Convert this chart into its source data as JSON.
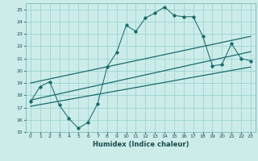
{
  "xlabel": "Humidex (Indice chaleur)",
  "bg_color": "#ccecea",
  "grid_color": "#9dd4d0",
  "line_color": "#1a6b6b",
  "xlim": [
    -0.5,
    23.5
  ],
  "ylim": [
    15,
    25.5
  ],
  "yticks": [
    15,
    16,
    17,
    18,
    19,
    20,
    21,
    22,
    23,
    24,
    25
  ],
  "xticks": [
    0,
    1,
    2,
    3,
    4,
    5,
    6,
    7,
    8,
    9,
    10,
    11,
    12,
    13,
    14,
    15,
    16,
    17,
    18,
    19,
    20,
    21,
    22,
    23
  ],
  "main_line_x": [
    0,
    1,
    2,
    3,
    4,
    5,
    6,
    7,
    8,
    9,
    10,
    11,
    12,
    13,
    14,
    15,
    16,
    17,
    18,
    19,
    20,
    21,
    22,
    23
  ],
  "main_line_y": [
    17.5,
    18.7,
    19.1,
    17.2,
    16.1,
    15.3,
    15.8,
    17.3,
    20.3,
    21.5,
    23.7,
    23.2,
    24.3,
    24.7,
    25.2,
    24.5,
    24.4,
    24.4,
    22.8,
    20.4,
    20.5,
    22.2,
    21.0,
    20.8
  ],
  "upper_line": [
    [
      0,
      19.0
    ],
    [
      23,
      22.8
    ]
  ],
  "lower_line": [
    [
      0,
      17.1
    ],
    [
      23,
      20.3
    ]
  ],
  "mid_line": [
    [
      0,
      17.6
    ],
    [
      23,
      21.55
    ]
  ],
  "spine_color": "#7ab8b5"
}
